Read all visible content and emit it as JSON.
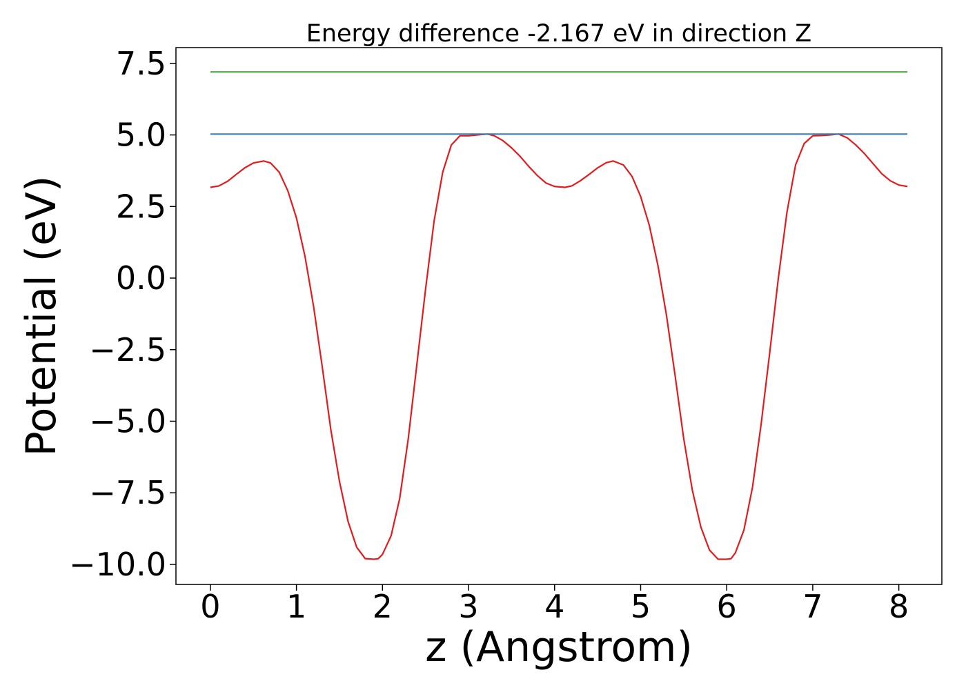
{
  "chart_data": {
    "type": "line",
    "title": "Energy difference -2.167 eV in direction Z",
    "xlabel": "z (Angstrom)",
    "ylabel": "Potential (eV)",
    "xlim": [
      -0.4,
      8.5
    ],
    "ylim": [
      -10.7,
      8.05
    ],
    "x_ticks": [
      0,
      1,
      2,
      3,
      4,
      5,
      6,
      7,
      8
    ],
    "x_tick_labels": [
      "0",
      "1",
      "2",
      "3",
      "4",
      "5",
      "6",
      "7",
      "8"
    ],
    "y_ticks": [
      7.5,
      5.0,
      2.5,
      0.0,
      -2.5,
      -5.0,
      -7.5,
      -10.0
    ],
    "y_tick_labels": [
      "7.5",
      "5.0",
      "2.5",
      "0.0",
      "−2.5",
      "−5.0",
      "−7.5",
      "−10.0"
    ],
    "grid": false,
    "series": [
      {
        "color": "#e41a1c",
        "x": [
          0,
          0.1,
          0.2,
          0.3,
          0.4,
          0.5,
          0.62,
          0.7,
          0.8,
          0.9,
          1.0,
          1.1,
          1.2,
          1.3,
          1.4,
          1.5,
          1.6,
          1.7,
          1.8,
          1.9,
          1.95,
          2.0,
          2.1,
          2.2,
          2.3,
          2.4,
          2.5,
          2.6,
          2.7,
          2.8,
          2.9,
          3.0,
          3.1,
          3.22,
          3.3,
          3.4,
          3.5,
          3.6,
          3.7,
          3.8,
          3.9,
          4.0,
          4.12,
          4.2,
          4.3,
          4.4,
          4.5,
          4.6,
          4.68,
          4.8,
          4.9,
          5.0,
          5.1,
          5.2,
          5.3,
          5.4,
          5.5,
          5.6,
          5.7,
          5.8,
          5.9,
          6.0,
          6.05,
          6.1,
          6.2,
          6.3,
          6.4,
          6.5,
          6.6,
          6.7,
          6.8,
          6.9,
          7.0,
          7.1,
          7.2,
          7.3,
          7.4,
          7.5,
          7.6,
          7.7,
          7.8,
          7.9,
          8.0,
          8.1
        ],
        "y": [
          3.17,
          3.22,
          3.38,
          3.62,
          3.85,
          4.02,
          4.09,
          4.02,
          3.7,
          3.05,
          2.1,
          0.75,
          -1.0,
          -3.1,
          -5.3,
          -7.1,
          -8.5,
          -9.4,
          -9.8,
          -9.82,
          -9.8,
          -9.65,
          -9.0,
          -7.7,
          -5.6,
          -3.0,
          -0.4,
          2.0,
          3.7,
          4.65,
          4.97,
          4.97,
          5.0,
          5.03,
          4.97,
          4.8,
          4.55,
          4.25,
          3.9,
          3.58,
          3.32,
          3.2,
          3.17,
          3.22,
          3.4,
          3.62,
          3.85,
          4.03,
          4.09,
          3.95,
          3.55,
          2.85,
          1.85,
          0.45,
          -1.3,
          -3.4,
          -5.6,
          -7.4,
          -8.7,
          -9.5,
          -9.82,
          -9.82,
          -9.8,
          -9.6,
          -8.8,
          -7.3,
          -5.1,
          -2.6,
          0.0,
          2.3,
          3.95,
          4.7,
          4.97,
          4.98,
          5.0,
          5.03,
          4.9,
          4.65,
          4.35,
          4.0,
          3.65,
          3.4,
          3.25,
          3.2
        ]
      },
      {
        "color": "#377eb8",
        "x": [
          0,
          8.1
        ],
        "y": [
          5.03,
          5.03
        ]
      },
      {
        "color": "#4daf4a",
        "x": [
          0,
          8.1
        ],
        "y": [
          7.2,
          7.2
        ]
      }
    ]
  }
}
